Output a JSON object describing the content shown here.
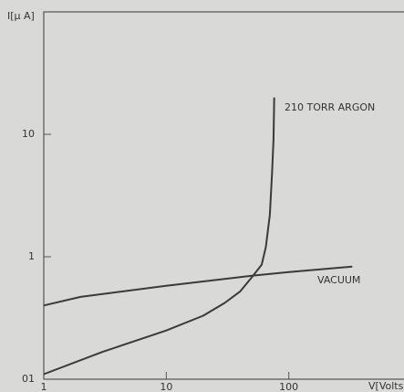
{
  "chart_data": {
    "type": "line",
    "y_label": "I[μ A]",
    "x_label": "V[Volts",
    "log_x": true,
    "log_y": true,
    "xlim": [
      1,
      800
    ],
    "ylim": [
      0.1,
      100
    ],
    "xticks": [
      1,
      10,
      100
    ],
    "yticks": [
      {
        "value": 0.1,
        "label": "01"
      },
      1,
      10
    ],
    "series": [
      {
        "name": "210 TORR ARGON",
        "color": "#3a3a3a",
        "x": [
          1,
          3,
          10,
          20,
          30,
          40,
          50,
          60,
          65,
          70,
          73,
          75,
          76
        ],
        "values": [
          0.11,
          0.167,
          0.25,
          0.33,
          0.42,
          0.52,
          0.68,
          0.86,
          1.2,
          2.2,
          4.8,
          9,
          20
        ]
      },
      {
        "name": "VACUUM",
        "color": "#3a3a3a",
        "x": [
          1,
          2,
          10,
          50,
          100,
          330
        ],
        "values": [
          0.4,
          0.47,
          0.58,
          0.7,
          0.75,
          0.83
        ]
      }
    ]
  }
}
